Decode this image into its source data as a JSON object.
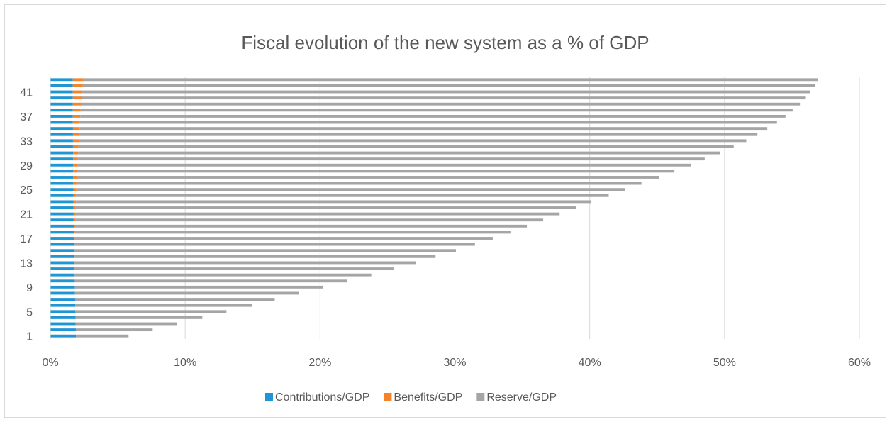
{
  "chart_data": {
    "type": "bar",
    "orientation": "horizontal",
    "stacked": true,
    "title": "Fiscal evolution of the new system as a % of GDP",
    "xlabel": "",
    "ylabel": "",
    "xlim": [
      0,
      0.6
    ],
    "x_ticks": [
      "0%",
      "10%",
      "20%",
      "30%",
      "40%",
      "50%",
      "60%"
    ],
    "categories": [
      1,
      2,
      3,
      4,
      5,
      6,
      7,
      8,
      9,
      10,
      11,
      12,
      13,
      14,
      15,
      16,
      17,
      18,
      19,
      20,
      21,
      22,
      23,
      24,
      25,
      26,
      27,
      28,
      29,
      30,
      31,
      32,
      33,
      34,
      35,
      36,
      37,
      38,
      39,
      40,
      41,
      42,
      43
    ],
    "y_tick_labels": [
      "1",
      "5",
      "9",
      "13",
      "17",
      "21",
      "25",
      "29",
      "33",
      "37",
      "41"
    ],
    "grid": "vertical",
    "legend_position": "bottom",
    "series": [
      {
        "name": "Contributions/GDP",
        "color": "#1f96d3",
        "values": [
          0.019,
          0.0189,
          0.0188,
          0.0187,
          0.0186,
          0.0185,
          0.0184,
          0.0183,
          0.0182,
          0.0181,
          0.018,
          0.0179,
          0.0178,
          0.0177,
          0.0176,
          0.0175,
          0.0175,
          0.0174,
          0.0174,
          0.0173,
          0.0173,
          0.0172,
          0.0172,
          0.0171,
          0.0171,
          0.017,
          0.017,
          0.017,
          0.0169,
          0.0169,
          0.0169,
          0.0168,
          0.0168,
          0.0168,
          0.0168,
          0.0167,
          0.0167,
          0.0167,
          0.0167,
          0.0167,
          0.0167,
          0.0167,
          0.0167
        ]
      },
      {
        "name": "Benefits/GDP",
        "color": "#f5832a",
        "values": [
          0,
          0,
          0,
          0,
          0,
          0,
          0,
          0,
          0,
          0,
          0,
          0,
          0,
          0,
          0.0002,
          0.0004,
          0.0006,
          0.0008,
          0.001,
          0.0012,
          0.0014,
          0.0016,
          0.0018,
          0.002,
          0.0022,
          0.0024,
          0.0026,
          0.0028,
          0.0031,
          0.0034,
          0.0037,
          0.004,
          0.0043,
          0.0046,
          0.0049,
          0.0052,
          0.0055,
          0.0058,
          0.0062,
          0.0066,
          0.007,
          0.0074,
          0.0078
        ]
      },
      {
        "name": "Reserve/GDP",
        "color": "#a5a5a5",
        "values": [
          0.039,
          0.057,
          0.075,
          0.094,
          0.112,
          0.131,
          0.148,
          0.166,
          0.184,
          0.202,
          0.22,
          0.237,
          0.253,
          0.268,
          0.283,
          0.297,
          0.31,
          0.323,
          0.335,
          0.347,
          0.359,
          0.371,
          0.382,
          0.395,
          0.407,
          0.419,
          0.432,
          0.443,
          0.455,
          0.465,
          0.476,
          0.486,
          0.495,
          0.503,
          0.51,
          0.517,
          0.523,
          0.528,
          0.533,
          0.537,
          0.54,
          0.543,
          0.545
        ]
      }
    ]
  }
}
